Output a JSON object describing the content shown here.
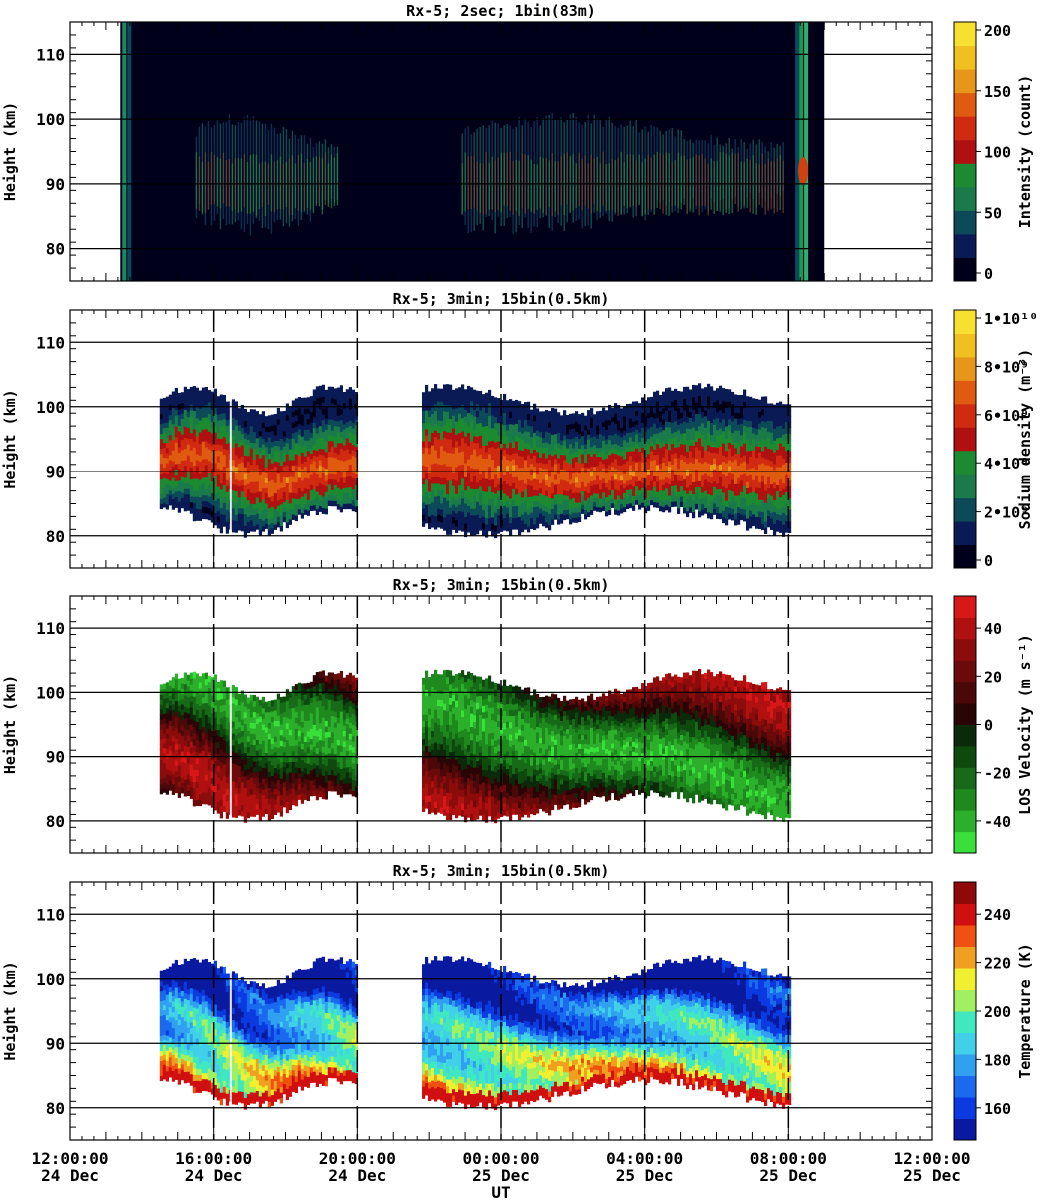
{
  "figure": {
    "x_axis_title": "UT",
    "x_range_hours": [
      0,
      24
    ],
    "x_ticks": [
      {
        "hour": 0,
        "time": "12:00:00",
        "date": "24 Dec"
      },
      {
        "hour": 4,
        "time": "16:00:00",
        "date": "24 Dec"
      },
      {
        "hour": 8,
        "time": "20:00:00",
        "date": "24 Dec"
      },
      {
        "hour": 12,
        "time": "00:00:00",
        "date": "25 Dec"
      },
      {
        "hour": 16,
        "time": "04:00:00",
        "date": "25 Dec"
      },
      {
        "hour": 20,
        "time": "08:00:00",
        "date": "25 Dec"
      },
      {
        "hour": 24,
        "time": "12:00:00",
        "date": "25 Dec"
      }
    ]
  },
  "chart_data": [
    {
      "type": "heatmap",
      "title": "Rx-5;  2sec; 1bin(83m)",
      "ylabel": "Height (km)",
      "ylim": [
        75,
        115
      ],
      "yticks": [
        80,
        90,
        100,
        110
      ],
      "colorbar": {
        "label": "Intensity (count)",
        "ticks": [
          "0",
          "50",
          "100",
          "150",
          "200"
        ],
        "range": [
          0,
          200
        ],
        "colors": [
          "#00001a",
          "#0a1a55",
          "#0c4a5a",
          "#1a7a4a",
          "#1c8a30",
          "#b01010",
          "#d02a10",
          "#e05a10",
          "#e8961a",
          "#f0c020",
          "#f8e030"
        ]
      },
      "coverage_hours": [
        1.4,
        21.0
      ],
      "layer_segments_hours": [
        [
          3.5,
          7.5
        ],
        [
          10.9,
          19.9
        ]
      ],
      "layer_height_km": [
        82,
        100
      ],
      "peak_height_km": 90,
      "vertical_dashes": false
    },
    {
      "type": "heatmap",
      "title": "Rx-5; 3min; 15bin(0.5km)",
      "ylabel": "Height (km)",
      "ylim": [
        75,
        115
      ],
      "yticks": [
        80,
        90,
        100,
        110
      ],
      "colorbar": {
        "label": "Sodium density (m⁻³)",
        "ticks": [
          "0",
          "2•10⁹",
          "4•10⁹",
          "6•10⁹",
          "8•10⁹",
          "1•10¹⁰"
        ],
        "range": [
          0,
          10000000000
        ],
        "colors": [
          "#00001a",
          "#0a1a55",
          "#0c4a5a",
          "#1a7a4a",
          "#1c8a30",
          "#b01010",
          "#d02a10",
          "#e05a10",
          "#e8961a",
          "#f0c020",
          "#f8e030"
        ]
      },
      "segments_hours": [
        [
          2.5,
          8.0
        ],
        [
          9.8,
          20.0
        ]
      ],
      "layer_height_km": [
        80,
        103
      ],
      "vertical_dashes": true
    },
    {
      "type": "heatmap",
      "title": "Rx-5; 3min; 15bin(0.5km)",
      "ylabel": "Height (km)",
      "ylim": [
        75,
        115
      ],
      "yticks": [
        80,
        90,
        100,
        110
      ],
      "colorbar": {
        "label": "LOS Velocity (m s⁻¹)",
        "ticks": [
          "-40",
          "-20",
          "0",
          "20",
          "40"
        ],
        "range": [
          -50,
          50
        ],
        "colors": [
          "#3ae03a",
          "#2cb02c",
          "#1e8a1e",
          "#176a17",
          "#0e4a0e",
          "#0a2a0a",
          "#2a0505",
          "#4a0808",
          "#6a0a0a",
          "#8c0c0c",
          "#b01010",
          "#d81818"
        ]
      },
      "segments_hours": [
        [
          2.5,
          8.0
        ],
        [
          9.8,
          20.0
        ]
      ],
      "layer_height_km": [
        80,
        103
      ],
      "vertical_dashes": true
    },
    {
      "type": "heatmap",
      "title": "Rx-5; 3min; 15bin(0.5km)",
      "ylabel": "Height (km)",
      "ylim": [
        75,
        115
      ],
      "yticks": [
        80,
        90,
        100,
        110
      ],
      "colorbar": {
        "label": "Temperature (K)",
        "ticks": [
          "160",
          "180",
          "200",
          "220",
          "240"
        ],
        "range": [
          150,
          250
        ],
        "colors": [
          "#0a1aa0",
          "#0a3ae0",
          "#1a6af0",
          "#30a0f0",
          "#40d0e8",
          "#40e8c0",
          "#a0f060",
          "#f0f030",
          "#f0a020",
          "#f05010",
          "#d01010",
          "#900808"
        ]
      },
      "segments_hours": [
        [
          2.5,
          8.0
        ],
        [
          9.8,
          20.0
        ]
      ],
      "layer_height_km": [
        80,
        103
      ],
      "vertical_dashes": true
    }
  ]
}
